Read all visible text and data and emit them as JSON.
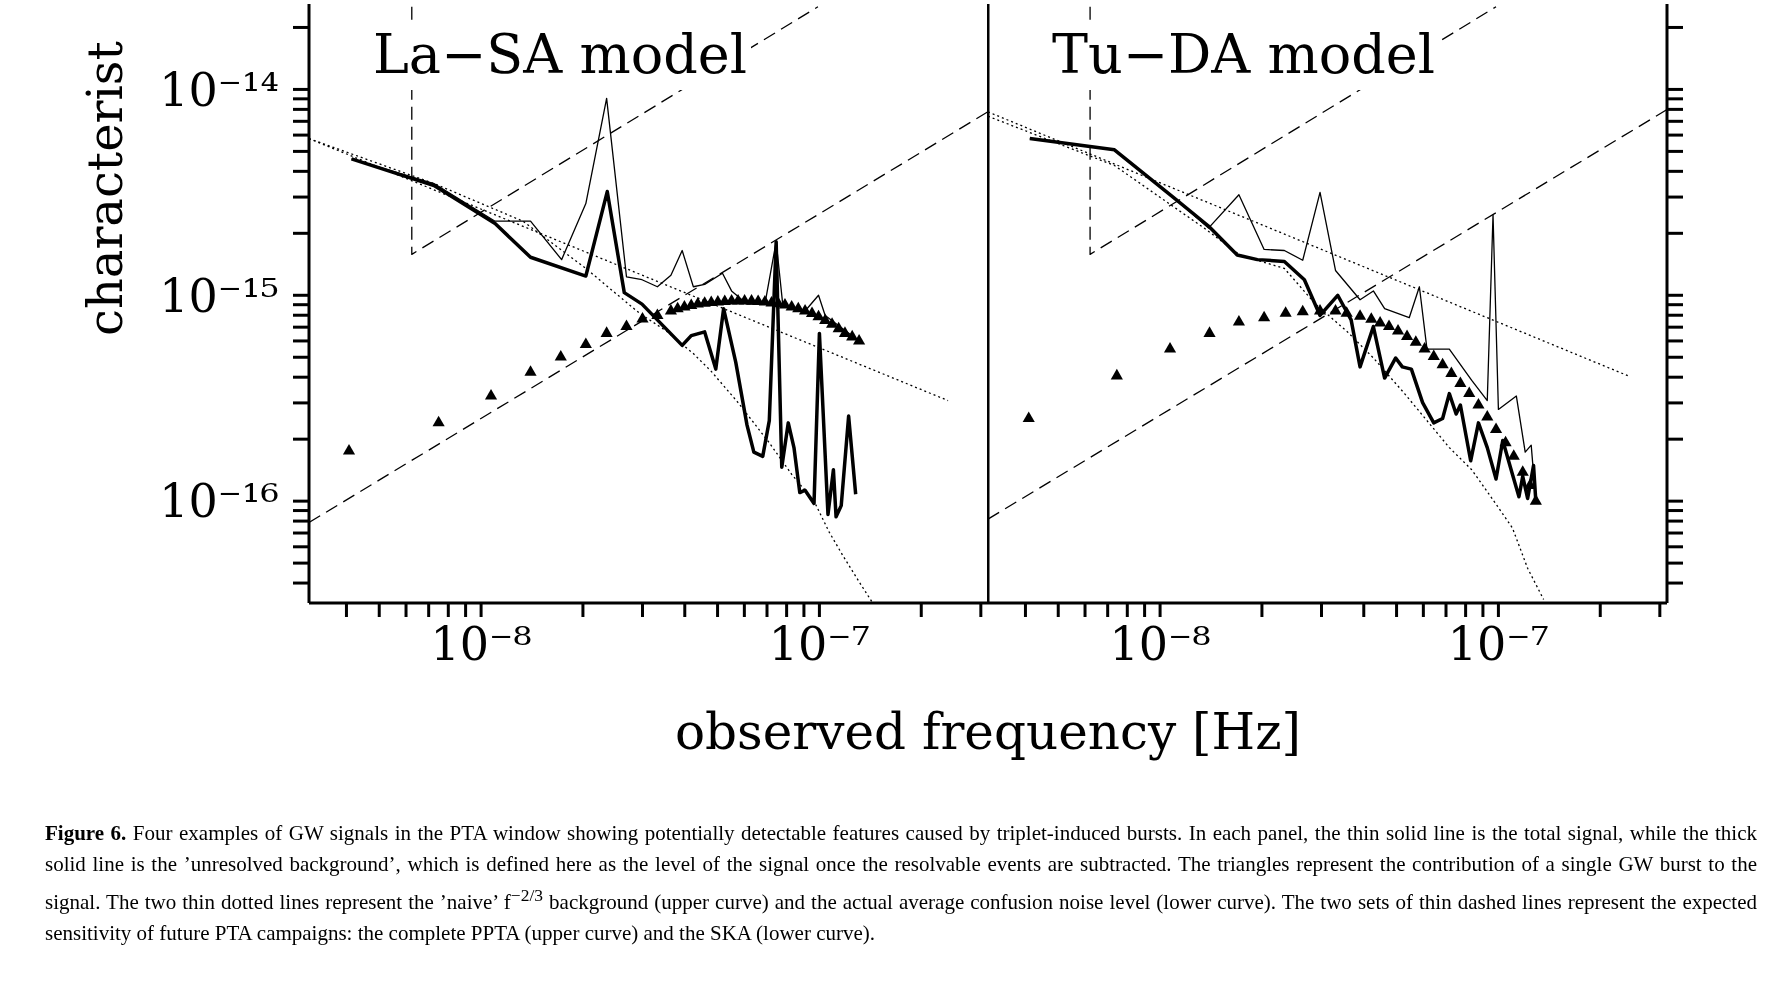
{
  "chart_data": [
    {
      "type": "line",
      "title": "La−SA model",
      "xlabel": "observed frequency [Hz]",
      "ylabel": "characterist",
      "log": "xy",
      "xlim": [
        3.1e-09,
        3.15e-07
      ],
      "ylim": [
        3.2e-17,
        2.6e-14
      ],
      "xticks": [
        {
          "value": 4e-09,
          "label": null
        },
        {
          "value": 5e-09,
          "label": null
        },
        {
          "value": 6e-09,
          "label": null
        },
        {
          "value": 7e-09,
          "label": null
        },
        {
          "value": 8e-09,
          "label": null
        },
        {
          "value": 9e-09,
          "label": null
        },
        {
          "value": 1e-08,
          "label": "10⁻⁸"
        },
        {
          "value": 2e-08,
          "label": null
        },
        {
          "value": 3e-08,
          "label": null
        },
        {
          "value": 4e-08,
          "label": null
        },
        {
          "value": 5e-08,
          "label": null
        },
        {
          "value": 6e-08,
          "label": null
        },
        {
          "value": 7e-08,
          "label": null
        },
        {
          "value": 8e-08,
          "label": null
        },
        {
          "value": 9e-08,
          "label": null
        },
        {
          "value": 1e-07,
          "label": "10⁻⁷"
        },
        {
          "value": 2e-07,
          "label": null
        },
        {
          "value": 3e-07,
          "label": null
        }
      ],
      "yticks": [
        {
          "value": 4e-17,
          "label": null
        },
        {
          "value": 5e-17,
          "label": null
        },
        {
          "value": 6e-17,
          "label": null
        },
        {
          "value": 7e-17,
          "label": null
        },
        {
          "value": 8e-17,
          "label": null
        },
        {
          "value": 9e-17,
          "label": null
        },
        {
          "value": 1e-16,
          "label": "10⁻¹⁶"
        },
        {
          "value": 2e-16,
          "label": null
        },
        {
          "value": 3e-16,
          "label": null
        },
        {
          "value": 4e-16,
          "label": null
        },
        {
          "value": 5e-16,
          "label": null
        },
        {
          "value": 6e-16,
          "label": null
        },
        {
          "value": 7e-16,
          "label": null
        },
        {
          "value": 8e-16,
          "label": null
        },
        {
          "value": 9e-16,
          "label": null
        },
        {
          "value": 1e-15,
          "label": "10⁻¹⁵"
        },
        {
          "value": 2e-15,
          "label": null
        },
        {
          "value": 3e-15,
          "label": null
        },
        {
          "value": 4e-15,
          "label": null
        },
        {
          "value": 5e-15,
          "label": null
        },
        {
          "value": 6e-15,
          "label": null
        },
        {
          "value": 7e-15,
          "label": null
        },
        {
          "value": 8e-15,
          "label": null
        },
        {
          "value": 9e-15,
          "label": null
        },
        {
          "value": 1e-14,
          "label": "10⁻¹⁴"
        },
        {
          "value": 2e-14,
          "label": null
        }
      ],
      "annotations": [
        "Figure 6.",
        "Four examples of GW signals in the PTA window showing potentially detectable features caused by triplet-induced bursts. In each panel, the thin solid line is the total signal, while the thick solid line is the ’unresolved background’, which is defined here as the level of the signal once the resolvable events are subtracted. The triangles represent the contribution of a single GW burst to the signal. The two thin dotted lines represent the ’naive’ f$^{−2/3}$ background (upper curve) and the actual average confusion noise level (lower curve). The two sets of thin dashed lines represent the expected sensitivity of future PTA campaigns: the complete PPTA (upper curve) and the SKA (lower curve)."
      ],
      "series": [
        {
          "type": "line",
          "color": "#000000",
          "line_style": "solid",
          "x": [
            4.14e-09,
            7.26e-09,
            1.1e-08,
            1.4e-08,
            2.04e-08,
            2.36e-08,
            2.65e-08,
            2.99e-08,
            3.93e-08,
            4.18e-08,
            4.58e-08,
            4.94e-08,
            5.21e-08,
            5.66e-08,
            6.11e-08,
            6.4e-08,
            6.8e-08,
            7.11e-08,
            7.45e-08,
            7.74e-08,
            8.09e-08,
            8.41e-08,
            8.75e-08,
            9.07e-08,
            9.64e-08,
            1e-07,
            1.06e-07,
            1.1e-07,
            1.12e-07,
            1.16e-07,
            1.22e-07,
            1.28e-07
          ],
          "values": [
            4.6e-15,
            3.41e-15,
            2.23e-15,
            1.53e-15,
            1.24e-15,
            3.19e-15,
            1.03e-15,
            9.06e-16,
            5.71e-16,
            6.37e-16,
            6.64e-16,
            4.38e-16,
            8.61e-16,
            4.72e-16,
            2.34e-16,
            1.73e-16,
            1.65e-16,
            2.46e-16,
            1.82e-15,
            1.46e-16,
            2.4e-16,
            1.82e-16,
            1.1e-16,
            1.13e-16,
            9.75e-17,
            6.53e-16,
            8.61e-17,
            1.42e-16,
            8.39e-17,
            9.51e-17,
            2.59e-16,
            1.08e-16
          ]
        },
        {
          "type": "line",
          "color": "#000000",
          "line_style": "solid",
          "x": [
            4.14e-09,
            7.26e-09,
            1.1e-08,
            1.4e-08,
            1.73e-08,
            2.04e-08,
            2.35e-08,
            2.69e-08,
            2.99e-08,
            3.32e-08,
            3.64e-08,
            3.93e-08,
            4.24e-08,
            4.58e-08,
            5.17e-08,
            5.5e-08,
            6.11e-08,
            6.9e-08,
            7.45e-08,
            7.79e-08,
            9.07e-08,
            9.94e-08,
            1.04e-07,
            1.31e-07
          ],
          "values": [
            4.6e-15,
            3.49e-15,
            2.29e-15,
            2.29e-15,
            1.49e-15,
            2.79e-15,
            9.05e-15,
            1.23e-15,
            1.19e-15,
            1.1e-15,
            1.25e-15,
            1.65e-15,
            1.1e-15,
            1.13e-15,
            1.28e-15,
            1.05e-15,
            9.06e-16,
            9.06e-16,
            1.82e-15,
            9.06e-16,
            8.39e-16,
            1e-15,
            7.98e-16,
            6e-16
          ]
        },
        {
          "type": "scatter",
          "color": "#000000",
          "marker": "triangle",
          "x": [
            4.07e-09,
            7.49e-09,
            1.07e-08,
            1.4e-08,
            1.72e-08,
            2.04e-08,
            2.35e-08,
            2.69e-08,
            3e-08,
            3.32e-08,
            3.64e-08,
            3.81e-08,
            3.99e-08,
            4.18e-08,
            4.37e-08,
            4.58e-08,
            4.79e-08,
            5.01e-08,
            5.25e-08,
            5.5e-08,
            5.75e-08,
            6.01e-08,
            6.3e-08,
            6.59e-08,
            6.9e-08,
            7.22e-08,
            7.56e-08,
            7.91e-08,
            8.28e-08,
            8.66e-08,
            9.07e-08,
            9.51e-08,
            9.94e-08,
            1.04e-07,
            1.09e-07,
            1.14e-07,
            1.19e-07,
            1.25e-07,
            1.31e-07
          ],
          "values": [
            1.75e-16,
            2.4e-16,
            3.24e-16,
            4.23e-16,
            5.01e-16,
            5.77e-16,
            6.53e-16,
            7.05e-16,
            7.67e-16,
            7.98e-16,
            8.39e-16,
            8.61e-16,
            8.77e-16,
            8.91e-16,
            9.06e-16,
            9.14e-16,
            9.23e-16,
            9.28e-16,
            9.33e-16,
            9.37e-16,
            9.37e-16,
            9.37e-16,
            9.37e-16,
            9.33e-16,
            9.28e-16,
            9.18e-16,
            9.1e-16,
            8.96e-16,
            8.77e-16,
            8.61e-16,
            8.39e-16,
            8.15e-16,
            7.87e-16,
            7.55e-16,
            7.23e-16,
            6.87e-16,
            6.53e-16,
            6.28e-16,
            6e-16
          ]
        },
        {
          "type": "line",
          "color": "#000000",
          "line_style": "dotted",
          "x": [
            3.1e-09,
            2.4e-07
          ],
          "values": [
            5.77e-15,
            3.08e-16
          ]
        },
        {
          "type": "line",
          "color": "#000000",
          "line_style": "dotted",
          "x": [
            3.1e-09,
            7.26e-09,
            1.33e-08,
            2.04e-08,
            2.45e-08,
            2.94e-08,
            3.53e-08,
            4.24e-08,
            4.79e-08,
            5.75e-08,
            7.11e-08,
            8.28e-08,
            9.64e-08,
            1.07e-07,
            1.17e-07,
            1.31e-07,
            1.43e-07
          ],
          "values": [
            5.77e-15,
            3.49e-15,
            2.29e-15,
            1.35e-15,
            1.05e-15,
            8.18e-16,
            6.7e-16,
            5.21e-16,
            4.27e-16,
            3.01e-16,
            1.92e-16,
            1.35e-16,
            1e-16,
            7.05e-17,
            5.48e-17,
            4.06e-17,
            3.24e-17
          ]
        },
        {
          "type": "line",
          "color": "#000000",
          "line_style": "dashed",
          "x": [
            6.24e-09,
            6.24e-09,
            9.9e-08
          ],
          "values": [
            2.52e-14,
            1.58e-15,
            2.52e-14
          ]
        },
        {
          "type": "line",
          "color": "#000000",
          "line_style": "dashed",
          "x": [
            3.1e-09,
            3.15e-07
          ],
          "values": [
            7.87e-17,
            7.79e-15
          ]
        }
      ]
    },
    {
      "type": "line",
      "title": "Tu−DA model",
      "log": "xy",
      "tick_labels": "x",
      "xlim": [
        3.1e-09,
        3.15e-07
      ],
      "ylim": [
        3.2e-17,
        2.6e-14
      ],
      "xticks": [
        {
          "value": 4e-09,
          "label": null
        },
        {
          "value": 5e-09,
          "label": null
        },
        {
          "value": 6e-09,
          "label": null
        },
        {
          "value": 7e-09,
          "label": null
        },
        {
          "value": 8e-09,
          "label": null
        },
        {
          "value": 9e-09,
          "label": null
        },
        {
          "value": 1e-08,
          "label": "10⁻⁸"
        },
        {
          "value": 2e-08,
          "label": null
        },
        {
          "value": 3e-08,
          "label": null
        },
        {
          "value": 4e-08,
          "label": null
        },
        {
          "value": 5e-08,
          "label": null
        },
        {
          "value": 6e-08,
          "label": null
        },
        {
          "value": 7e-08,
          "label": null
        },
        {
          "value": 8e-08,
          "label": null
        },
        {
          "value": 9e-08,
          "label": null
        },
        {
          "value": 1e-07,
          "label": "10⁻⁷"
        },
        {
          "value": 2e-07,
          "label": null
        },
        {
          "value": 3e-07,
          "label": null
        }
      ],
      "yticks": [
        {
          "value": 4e-17,
          "label": null
        },
        {
          "value": 5e-17,
          "label": null
        },
        {
          "value": 6e-17,
          "label": null
        },
        {
          "value": 7e-17,
          "label": null
        },
        {
          "value": 8e-17,
          "label": null
        },
        {
          "value": 9e-17,
          "label": null
        },
        {
          "value": 1e-16,
          "label": null
        },
        {
          "value": 2e-16,
          "label": null
        },
        {
          "value": 3e-16,
          "label": null
        },
        {
          "value": 4e-16,
          "label": null
        },
        {
          "value": 5e-16,
          "label": null
        },
        {
          "value": 6e-16,
          "label": null
        },
        {
          "value": 7e-16,
          "label": null
        },
        {
          "value": 8e-16,
          "label": null
        },
        {
          "value": 9e-16,
          "label": null
        },
        {
          "value": 1e-15,
          "label": null
        },
        {
          "value": 2e-15,
          "label": null
        },
        {
          "value": 3e-15,
          "label": null
        },
        {
          "value": 4e-15,
          "label": null
        },
        {
          "value": 5e-15,
          "label": null
        },
        {
          "value": 6e-15,
          "label": null
        },
        {
          "value": 7e-15,
          "label": null
        },
        {
          "value": 8e-15,
          "label": null
        },
        {
          "value": 9e-15,
          "label": null
        },
        {
          "value": 1e-14,
          "label": null
        },
        {
          "value": 2e-14,
          "label": null
        }
      ],
      "series": [
        {
          "type": "line",
          "color": "#000000",
          "line_style": "solid",
          "x": [
            4.12e-09,
            7.33e-09,
            1.09e-08,
            1.39e-08,
            1.69e-08,
            1.94e-08,
            2.33e-08,
            2.67e-08,
            2.97e-08,
            3.35e-08,
            3.67e-08,
            3.9e-08,
            4.27e-08,
            4.61e-08,
            4.97e-08,
            5.2e-08,
            5.53e-08,
            5.97e-08,
            6.44e-08,
            6.84e-08,
            7.16e-08,
            7.5e-08,
            7.72e-08,
            8.28e-08,
            8.73e-08,
            9.27e-08,
            9.84e-08,
            1.03e-07,
            1.1e-07,
            1.15e-07,
            1.18e-07,
            1.22e-07,
            1.27e-07,
            1.29e-07
          ],
          "values": [
            5.77e-15,
            5.09e-15,
            3.01e-15,
            2.17e-15,
            1.57e-15,
            1.49e-15,
            1.46e-15,
            1.19e-15,
            7.98e-16,
            1e-15,
            7.59e-16,
            4.49e-16,
            7.05e-16,
            3.96e-16,
            4.96e-16,
            4.49e-16,
            4.38e-16,
            3.01e-16,
            2.4e-16,
            2.52e-16,
            3.33e-16,
            2.65e-16,
            2.93e-16,
            1.57e-16,
            2.4e-16,
            1.82e-16,
            1.28e-16,
            1.97e-16,
            1.35e-16,
            1.05e-16,
            1.32e-16,
            1.03e-16,
            1.49e-16,
            1e-16
          ]
        },
        {
          "type": "line",
          "color": "#000000",
          "line_style": "solid",
          "x": [
            4.12e-09,
            7.33e-09,
            1.09e-08,
            1.39e-08,
            1.71e-08,
            2.03e-08,
            2.33e-08,
            2.64e-08,
            2.97e-08,
            3.3e-08,
            3.9e-08,
            4.27e-08,
            4.61e-08,
            5.45e-08,
            5.84e-08,
            6.15e-08,
            7.16e-08,
            8.34e-08,
            9.27e-08,
            9.64e-08,
            1e-07,
            1.13e-07,
            1.2e-07,
            1.25e-07,
            1.29e-07
          ],
          "values": [
            5.77e-15,
            5.09e-15,
            3.01e-15,
            2.12e-15,
            3.08e-15,
            1.67e-15,
            1.65e-15,
            1.48e-15,
            3.16e-15,
            1.32e-15,
            9.51e-16,
            1.05e-15,
            8.61e-16,
            7.78e-16,
            1.1e-15,
            5.48e-16,
            5.48e-16,
            3.86e-16,
            3.08e-16,
            2.46e-15,
            2.79e-16,
            3.24e-16,
            1.73e-16,
            1.87e-16,
            1e-16
          ]
        },
        {
          "type": "scatter",
          "color": "#000000",
          "marker": "triangle",
          "x": [
            4.09e-09,
            7.45e-09,
            1.07e-08,
            1.4e-08,
            1.71e-08,
            2.03e-08,
            2.35e-08,
            2.64e-08,
            2.97e-08,
            3.3e-08,
            3.56e-08,
            3.9e-08,
            4.21e-08,
            4.47e-08,
            4.75e-08,
            5.05e-08,
            5.37e-08,
            5.7e-08,
            6.05e-08,
            6.44e-08,
            6.84e-08,
            7.26e-08,
            7.72e-08,
            8.2e-08,
            8.73e-08,
            9.27e-08,
            9.84e-08,
            1.05e-07,
            1.11e-07,
            1.18e-07,
            1.24e-07,
            1.29e-07
          ],
          "values": [
            2.52e-16,
            4.06e-16,
            5.48e-16,
            6.53e-16,
            7.41e-16,
            7.78e-16,
            8.18e-16,
            8.32e-16,
            8.39e-16,
            8.39e-16,
            8.18e-16,
            7.91e-16,
            7.64e-16,
            7.33e-16,
            7.05e-16,
            6.7e-16,
            6.31e-16,
            5.91e-16,
            5.48e-16,
            5.04e-16,
            4.6e-16,
            4.17e-16,
            3.73e-16,
            3.33e-16,
            2.93e-16,
            2.56e-16,
            2.23e-16,
            1.92e-16,
            1.65e-16,
            1.38e-16,
            1.19e-16,
            1e-16
          ]
        },
        {
          "type": "line",
          "color": "#000000",
          "line_style": "dotted",
          "x": [
            3.1e-09,
            2.42e-07
          ],
          "values": [
            7.78e-15,
            4.06e-16
          ]
        },
        {
          "type": "line",
          "color": "#000000",
          "line_style": "dotted",
          "x": [
            3.1e-09,
            7.33e-09,
            1.35e-08,
            1.72e-08,
            2.33e-08,
            2.88e-08,
            3.56e-08,
            4.27e-08,
            5.28e-08,
            6.15e-08,
            7.16e-08,
            8.34e-08,
            9.7e-08,
            1.1e-07,
            1.22e-07,
            1.36e-07
          ],
          "values": [
            7.41e-15,
            4.27e-15,
            2.12e-15,
            1.57e-15,
            1.35e-15,
            9.06e-16,
            6.7e-16,
            4.96e-16,
            3.33e-16,
            2.46e-16,
            1.82e-16,
            1.42e-16,
            1e-16,
            7.41e-17,
            4.72e-17,
            3.33e-17
          ]
        },
        {
          "type": "line",
          "color": "#000000",
          "line_style": "dashed",
          "x": [
            6.21e-09,
            6.21e-09,
            9.84e-08
          ],
          "values": [
            2.52e-14,
            1.58e-15,
            2.52e-14
          ]
        },
        {
          "type": "line",
          "color": "#000000",
          "line_style": "dashed",
          "x": [
            3.1e-09,
            3.15e-07
          ],
          "values": [
            8.18e-17,
            7.98e-15
          ]
        }
      ]
    }
  ]
}
